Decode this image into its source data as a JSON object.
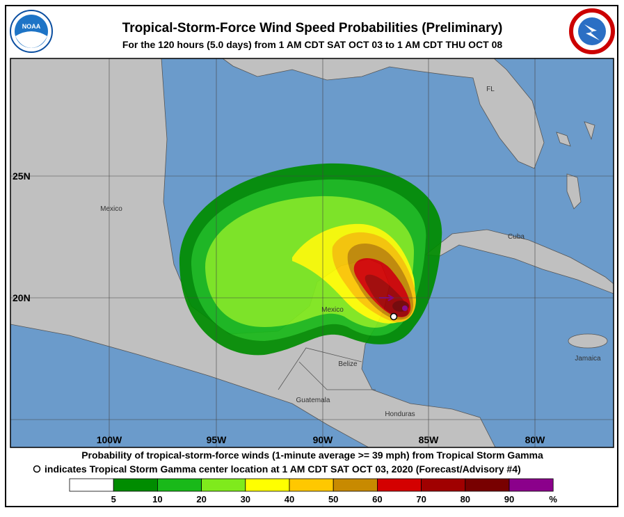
{
  "header": {
    "title": "Tropical-Storm-Force Wind Speed Probabilities (Preliminary)",
    "subtitle": "For the 120 hours (5.0 days) from 1 AM CDT SAT OCT 03 to 1 AM CDT THU OCT 08",
    "left_logo": "NOAA"
  },
  "map": {
    "lat_labels": [
      "25N",
      "20N"
    ],
    "lon_labels": [
      "100W",
      "95W",
      "90W",
      "85W",
      "80W"
    ],
    "places": [
      "Mexico",
      "Mexico",
      "FL",
      "Cuba",
      "Belize",
      "Guatemala",
      "Honduras",
      "Jamaica"
    ]
  },
  "caption": {
    "line1": "Probability of tropical-storm-force winds (1-minute average >= 39 mph) from Tropical Storm Gamma",
    "line2": "indicates Tropical Storm Gamma center location at 1 AM CDT SAT OCT 03, 2020 (Forecast/Advisory #4)"
  },
  "legend": {
    "colors": [
      "#ffffff",
      "#008c00",
      "#19b919",
      "#7fea1c",
      "#ffff00",
      "#ffc800",
      "#c88a00",
      "#d40000",
      "#a00000",
      "#780000",
      "#8b008b"
    ],
    "ticks": [
      5,
      10,
      20,
      30,
      40,
      50,
      60,
      70,
      80,
      90
    ],
    "unit": "%"
  }
}
